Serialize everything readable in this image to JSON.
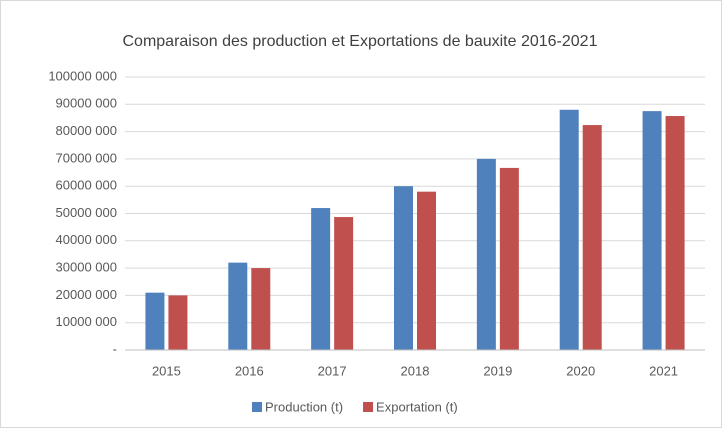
{
  "chart_data": {
    "type": "bar",
    "title": "Comparaison des production et Exportations de bauxite 2016-2021",
    "categories": [
      "2015",
      "2016",
      "2017",
      "2018",
      "2019",
      "2020",
      "2021"
    ],
    "series": [
      {
        "name": "Production (t)",
        "color": "#4f81bd",
        "values": [
          21000000,
          32000000,
          52000000,
          60000000,
          70000000,
          88000000,
          87500000
        ]
      },
      {
        "name": "Exportation (t)",
        "color": "#c0504d",
        "values": [
          20000000,
          30000000,
          48700000,
          58000000,
          66700000,
          82400000,
          85700000
        ]
      }
    ],
    "ylim": [
      0,
      100000000
    ],
    "yticks": [
      {
        "value": 0,
        "label": "-"
      },
      {
        "value": 10000000,
        "label": "10000 000"
      },
      {
        "value": 20000000,
        "label": "20000 000"
      },
      {
        "value": 30000000,
        "label": "30000 000"
      },
      {
        "value": 40000000,
        "label": "40000 000"
      },
      {
        "value": 50000000,
        "label": "50000 000"
      },
      {
        "value": 60000000,
        "label": "60000 000"
      },
      {
        "value": 70000000,
        "label": "70000 000"
      },
      {
        "value": 80000000,
        "label": "80000 000"
      },
      {
        "value": 90000000,
        "label": "90000 000"
      },
      {
        "value": 100000000,
        "label": "100000 000"
      }
    ],
    "grid": true
  }
}
